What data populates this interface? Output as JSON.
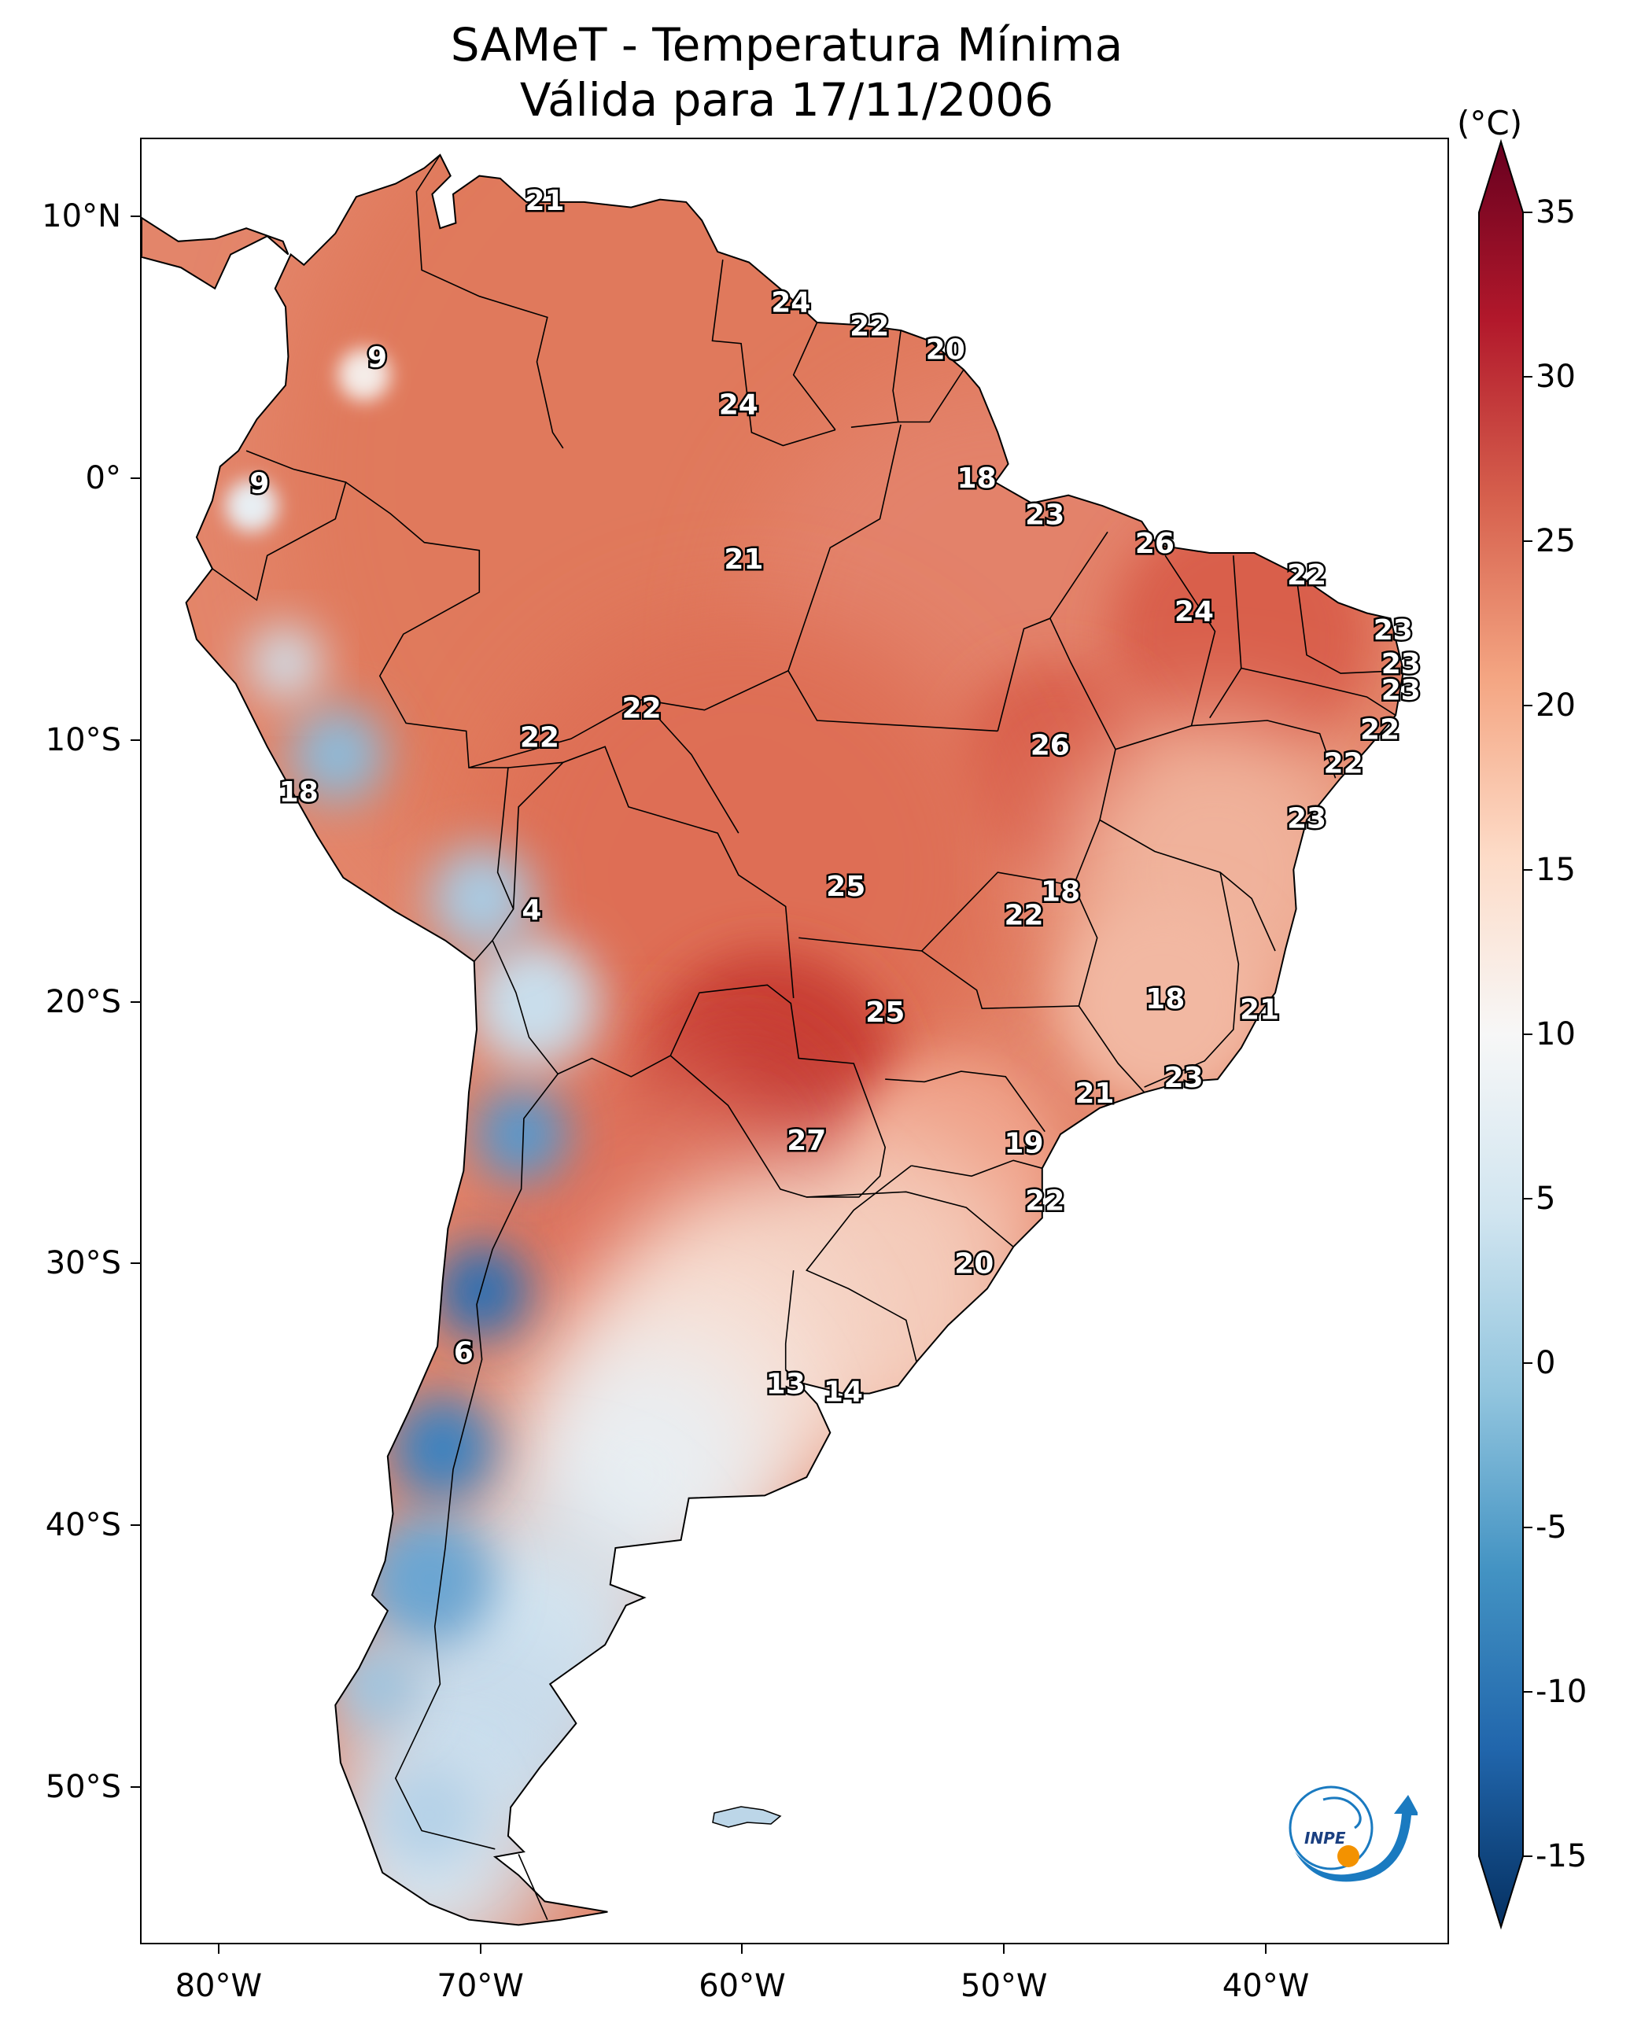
{
  "title": {
    "line1": "SAMeT - Temperatura Mínima",
    "line2": "Válida para 17/11/2006"
  },
  "map": {
    "lon_range": [
      -83,
      -33
    ],
    "lat_range": [
      -56,
      13
    ],
    "lat_ticks": [
      {
        "value": 10,
        "label": "10°N"
      },
      {
        "value": 0,
        "label": "0°"
      },
      {
        "value": -10,
        "label": "10°S"
      },
      {
        "value": -20,
        "label": "20°S"
      },
      {
        "value": -30,
        "label": "30°S"
      },
      {
        "value": -40,
        "label": "40°S"
      },
      {
        "value": -50,
        "label": "50°S"
      }
    ],
    "lon_ticks": [
      {
        "value": -80,
        "label": "80°W"
      },
      {
        "value": -70,
        "label": "70°W"
      },
      {
        "value": -60,
        "label": "60°W"
      },
      {
        "value": -50,
        "label": "50°W"
      },
      {
        "value": -40,
        "label": "40°W"
      }
    ],
    "station_values": [
      {
        "lon": -67.6,
        "lat": 10.6,
        "value": "21"
      },
      {
        "lon": -74.0,
        "lat": 4.6,
        "value": "9"
      },
      {
        "lon": -78.5,
        "lat": -0.2,
        "value": "9"
      },
      {
        "lon": -60.2,
        "lat": 2.8,
        "value": "24"
      },
      {
        "lon": -58.2,
        "lat": 6.7,
        "value": "24"
      },
      {
        "lon": -55.2,
        "lat": 5.8,
        "value": "22"
      },
      {
        "lon": -52.3,
        "lat": 4.9,
        "value": "20"
      },
      {
        "lon": -51.1,
        "lat": 0.0,
        "value": "18"
      },
      {
        "lon": -48.5,
        "lat": -1.4,
        "value": "23"
      },
      {
        "lon": -44.3,
        "lat": -2.5,
        "value": "26"
      },
      {
        "lon": -38.5,
        "lat": -3.7,
        "value": "22"
      },
      {
        "lon": -42.8,
        "lat": -5.1,
        "value": "24"
      },
      {
        "lon": -35.2,
        "lat": -5.8,
        "value": "23"
      },
      {
        "lon": -34.9,
        "lat": -7.1,
        "value": "23"
      },
      {
        "lon": -34.9,
        "lat": -8.1,
        "value": "23"
      },
      {
        "lon": -35.7,
        "lat": -9.6,
        "value": "22"
      },
      {
        "lon": -37.1,
        "lat": -10.9,
        "value": "22"
      },
      {
        "lon": -38.5,
        "lat": -13.0,
        "value": "23"
      },
      {
        "lon": -60.0,
        "lat": -3.1,
        "value": "21"
      },
      {
        "lon": -63.9,
        "lat": -8.8,
        "value": "22"
      },
      {
        "lon": -67.8,
        "lat": -9.9,
        "value": "22"
      },
      {
        "lon": -77.0,
        "lat": -12.0,
        "value": "18"
      },
      {
        "lon": -48.3,
        "lat": -10.2,
        "value": "26"
      },
      {
        "lon": -47.9,
        "lat": -15.8,
        "value": "18"
      },
      {
        "lon": -49.3,
        "lat": -16.7,
        "value": "22"
      },
      {
        "lon": -56.1,
        "lat": -15.6,
        "value": "25"
      },
      {
        "lon": -68.1,
        "lat": -16.5,
        "value": "4"
      },
      {
        "lon": -43.9,
        "lat": -19.9,
        "value": "18"
      },
      {
        "lon": -40.3,
        "lat": -20.3,
        "value": "21"
      },
      {
        "lon": -54.6,
        "lat": -20.4,
        "value": "25"
      },
      {
        "lon": -43.2,
        "lat": -22.9,
        "value": "23"
      },
      {
        "lon": -46.6,
        "lat": -23.5,
        "value": "21"
      },
      {
        "lon": -57.6,
        "lat": -25.3,
        "value": "27"
      },
      {
        "lon": -49.3,
        "lat": -25.4,
        "value": "19"
      },
      {
        "lon": -48.5,
        "lat": -27.6,
        "value": "22"
      },
      {
        "lon": -51.2,
        "lat": -30.0,
        "value": "20"
      },
      {
        "lon": -70.7,
        "lat": -33.4,
        "value": "6"
      },
      {
        "lon": -58.4,
        "lat": -34.6,
        "value": "13"
      },
      {
        "lon": -56.2,
        "lat": -34.9,
        "value": "14"
      }
    ]
  },
  "colorbar": {
    "unit": "(°C)",
    "min": -15,
    "max": 35,
    "ticks": [
      "35",
      "30",
      "25",
      "20",
      "15",
      "10",
      "5",
      "0",
      "-5",
      "-10",
      "-15"
    ],
    "colors": [
      "#053061",
      "#2166ac",
      "#4393c3",
      "#92c5de",
      "#d1e5f0",
      "#f7f7f7",
      "#fddbc7",
      "#f4a582",
      "#d6604d",
      "#b2182b",
      "#67001f"
    ]
  },
  "logo": {
    "text": "INPE",
    "colors": {
      "blue": "#1a7ac0",
      "orange": "#f39200"
    }
  }
}
